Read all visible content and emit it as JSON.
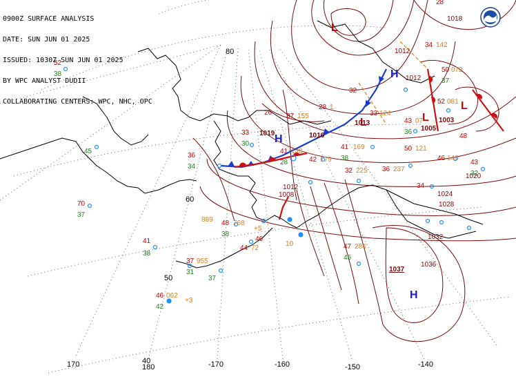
{
  "header": {
    "line1": "0900Z SURFACE ANALYSIS",
    "line2": "DATE: SUN JUN 01 2025",
    "line3": "ISSUED: 1030Z SUN JUN 01 2025",
    "line4": "BY WPC ANALYST DUDII",
    "line5": "COLLABORATING CENTERS: WPC, NHC, OPC"
  },
  "logo": {
    "name": "noaa-logo-icon"
  },
  "colors": {
    "isobar": "#7a0a0a",
    "coast": "#000000",
    "high": "#1a1acc",
    "low": "#cc0000",
    "cold_front": "#1a3ccc",
    "warm_front": "#d01010",
    "temp": "#cc0000",
    "dewpoint": "#208020",
    "pressure_obs": "#d88020",
    "station": "#1e90ff"
  },
  "grid_labels": {
    "lon": [
      "170",
      "180",
      "-170",
      "-160",
      "-150",
      "-140"
    ],
    "lat": [
      "80",
      "60",
      "50",
      "40"
    ]
  },
  "pressure_centers": [
    {
      "type": "H",
      "value": ""
    },
    {
      "type": "H",
      "value": "1037"
    },
    {
      "type": "H",
      "value": ""
    },
    {
      "type": "L",
      "value": "1019"
    },
    {
      "type": "L",
      "value": "1013"
    },
    {
      "type": "L",
      "value": "1005"
    },
    {
      "type": "L",
      "value": "1003"
    },
    {
      "type": "L",
      "value": "1016"
    }
  ],
  "isobar_labels": [
    "1036",
    "1032",
    "1028",
    "1024",
    "1020",
    "1012",
    "1008",
    "1016",
    "1018",
    "1037"
  ],
  "observations": [
    {
      "t": "52",
      "d": "38",
      "p": ""
    },
    {
      "t": "",
      "d": "45",
      "p": ""
    },
    {
      "t": "70",
      "d": "37",
      "p": ""
    },
    {
      "t": "41",
      "d": "38",
      "p": ""
    },
    {
      "t": "37",
      "d": "31",
      "p": "955"
    },
    {
      "t": "46",
      "d": "42",
      "p": "062"
    },
    {
      "t": "44",
      "d": "",
      "p": "72"
    },
    {
      "t": "46",
      "d": "",
      "p": ""
    },
    {
      "t": "48",
      "d": "38",
      "p": "768"
    },
    {
      "t": "",
      "d": "",
      "p": "889"
    },
    {
      "t": "36",
      "d": "34",
      "p": ""
    },
    {
      "t": "33",
      "d": "30",
      "p": ""
    },
    {
      "t": "41",
      "d": "28",
      "p": "148"
    },
    {
      "t": "42",
      "d": "",
      "p": "179"
    },
    {
      "t": "47",
      "d": "45",
      "p": "284"
    },
    {
      "t": "41",
      "d": "38",
      "p": "169"
    },
    {
      "t": "32",
      "d": "",
      "p": "225"
    },
    {
      "t": "36",
      "d": "",
      "p": "237"
    },
    {
      "t": "50",
      "d": "",
      "p": "121"
    },
    {
      "t": "28",
      "d": "",
      "p": "1"
    },
    {
      "t": "37",
      "d": "",
      "p": "155"
    },
    {
      "t": "26",
      "d": "",
      "p": ""
    },
    {
      "t": "43",
      "d": "36",
      "p": "07"
    },
    {
      "t": "33",
      "d": "",
      "p": "124"
    },
    {
      "t": "34",
      "d": "",
      "p": "142"
    },
    {
      "t": "50",
      "d": "37",
      "p": "072"
    },
    {
      "t": "52",
      "d": "",
      "p": "081"
    },
    {
      "t": "46",
      "d": "",
      "p": "140"
    },
    {
      "t": "43",
      "d": "32",
      "p": ""
    },
    {
      "t": "48",
      "d": "",
      "p": ""
    },
    {
      "t": "34",
      "d": "",
      "p": ""
    },
    {
      "t": "28",
      "d": "",
      "p": ""
    },
    {
      "t": "32",
      "d": "",
      "p": ""
    }
  ],
  "misc_text": [
    "+5",
    "+3",
    "10"
  ]
}
